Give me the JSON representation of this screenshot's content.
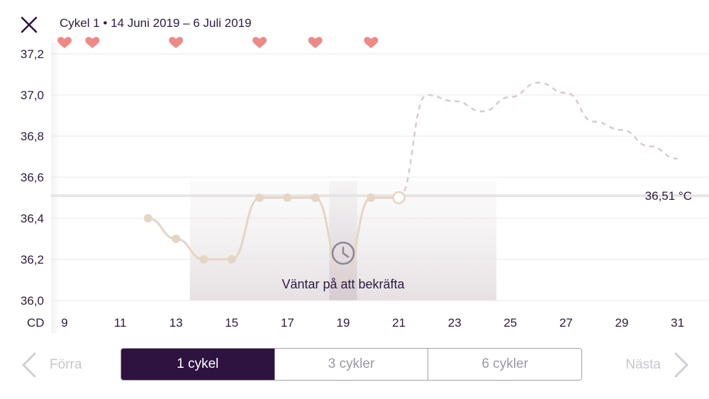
{
  "header": {
    "close_icon": "close-x-icon",
    "title": "Cykel 1 • 14 Juni 2019 – 6 Juli 2019"
  },
  "colors": {
    "primary": "#2e1240",
    "heart": "#ee8a86",
    "line": "#e5d5c5",
    "predicted": "#dcc9cc",
    "grid": "#e8e8e8"
  },
  "chart_data": {
    "type": "line",
    "xlabel": "CD",
    "x_range": [
      9,
      31
    ],
    "x_ticks": [
      9,
      11,
      13,
      15,
      17,
      19,
      21,
      23,
      25,
      27,
      29,
      31
    ],
    "ylim": [
      36.0,
      37.2
    ],
    "y_ticks": [
      "37,2",
      "37,0",
      "36,8",
      "36,6",
      "36,4",
      "36,2",
      "36,0"
    ],
    "y_tick_values": [
      37.2,
      37.0,
      36.8,
      36.6,
      36.4,
      36.2,
      36.0
    ],
    "heart_days": [
      9,
      10,
      13,
      16,
      18,
      20
    ],
    "measured": [
      {
        "x": 12,
        "y": 36.4
      },
      {
        "x": 13,
        "y": 36.3
      },
      {
        "x": 14,
        "y": 36.2
      },
      {
        "x": 15,
        "y": 36.2
      },
      {
        "x": 16,
        "y": 36.5
      },
      {
        "x": 17,
        "y": 36.5
      },
      {
        "x": 18,
        "y": 36.5
      },
      {
        "x": 19,
        "y": 36.1
      },
      {
        "x": 20,
        "y": 36.5
      },
      {
        "x": 21,
        "y": 36.5
      }
    ],
    "predicted": [
      {
        "x": 21,
        "y": 36.5
      },
      {
        "x": 22,
        "y": 37.0
      },
      {
        "x": 23,
        "y": 36.97
      },
      {
        "x": 24,
        "y": 36.92
      },
      {
        "x": 25,
        "y": 36.99
      },
      {
        "x": 26,
        "y": 37.06
      },
      {
        "x": 27,
        "y": 37.01
      },
      {
        "x": 28,
        "y": 36.87
      },
      {
        "x": 29,
        "y": 36.83
      },
      {
        "x": 30,
        "y": 36.75
      },
      {
        "x": 31,
        "y": 36.69
      }
    ],
    "shaded_ranges": [
      [
        13.5,
        24.5
      ]
    ],
    "dark_shaded_range": [
      18.5,
      19.5
    ],
    "pending_day": 19,
    "pending_label": "Väntar på att bekräfta",
    "coverline": {
      "value": 36.51,
      "label": "36,51 °C"
    },
    "grid": true
  },
  "footer": {
    "prev_label": "Förra",
    "next_label": "Nästa",
    "segments": [
      "1 cykel",
      "3 cykler",
      "6 cykler"
    ],
    "active_segment": 0
  }
}
